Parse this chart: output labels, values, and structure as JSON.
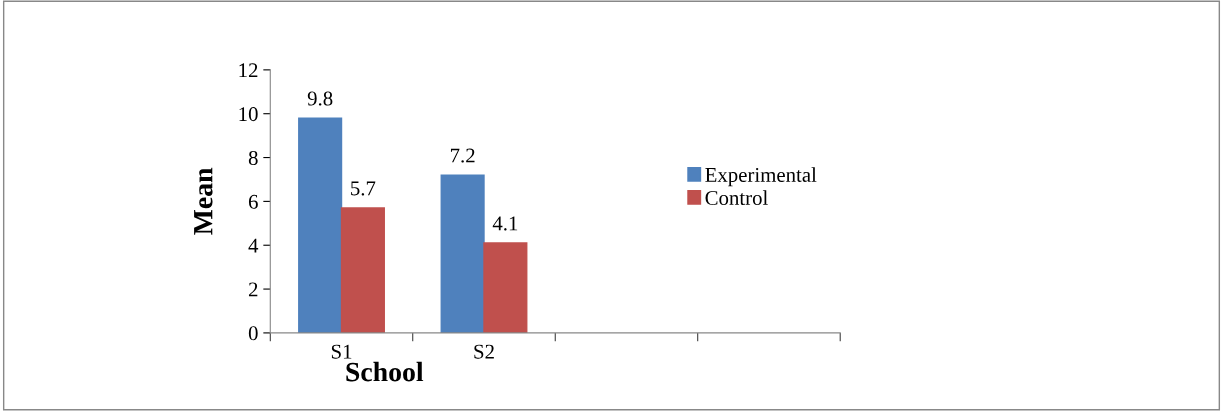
{
  "chart_data": {
    "type": "bar",
    "xlabel": "School",
    "ylabel": "Mean",
    "categories": [
      "S1",
      "S2",
      null,
      null
    ],
    "series": [
      {
        "name": "Experimental",
        "color": "#4f81bd",
        "values": [
          9.8,
          7.2,
          null,
          null
        ]
      },
      {
        "name": "Control",
        "color": "#c0504d",
        "values": [
          5.7,
          4.1,
          null,
          null
        ]
      }
    ],
    "ylim": [
      0,
      12
    ],
    "yticks": [
      0,
      2,
      4,
      6,
      8,
      10,
      12
    ],
    "grid": false,
    "legend": "right",
    "data_labels": true
  }
}
